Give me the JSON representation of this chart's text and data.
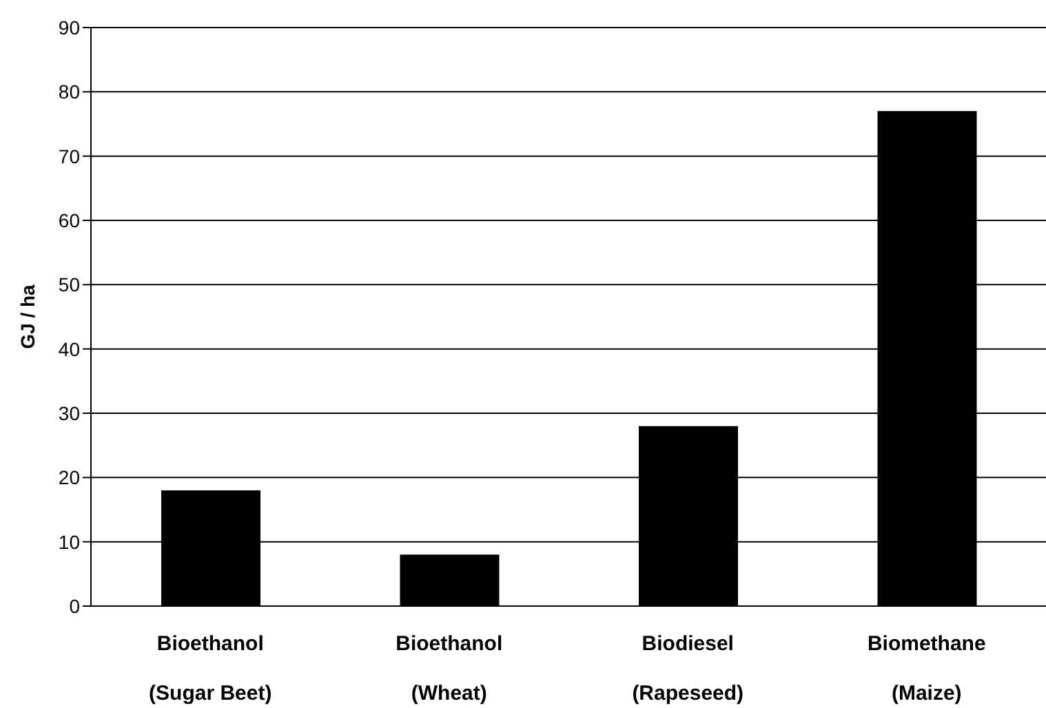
{
  "chart_data": {
    "type": "bar",
    "ylabel": "GJ / ha",
    "categories": [
      "Bioethanol\n(Sugar Beet)",
      "Bioethanol\n(Wheat)",
      "Biodiesel\n(Rapeseed)",
      "Biomethane\n(Maize)"
    ],
    "values": [
      18,
      8,
      28,
      77
    ],
    "color": "#000000",
    "ylim": [
      0,
      90
    ],
    "yticks": [
      0,
      10,
      20,
      30,
      40,
      50,
      60,
      70,
      80,
      90
    ],
    "grid": "y"
  }
}
